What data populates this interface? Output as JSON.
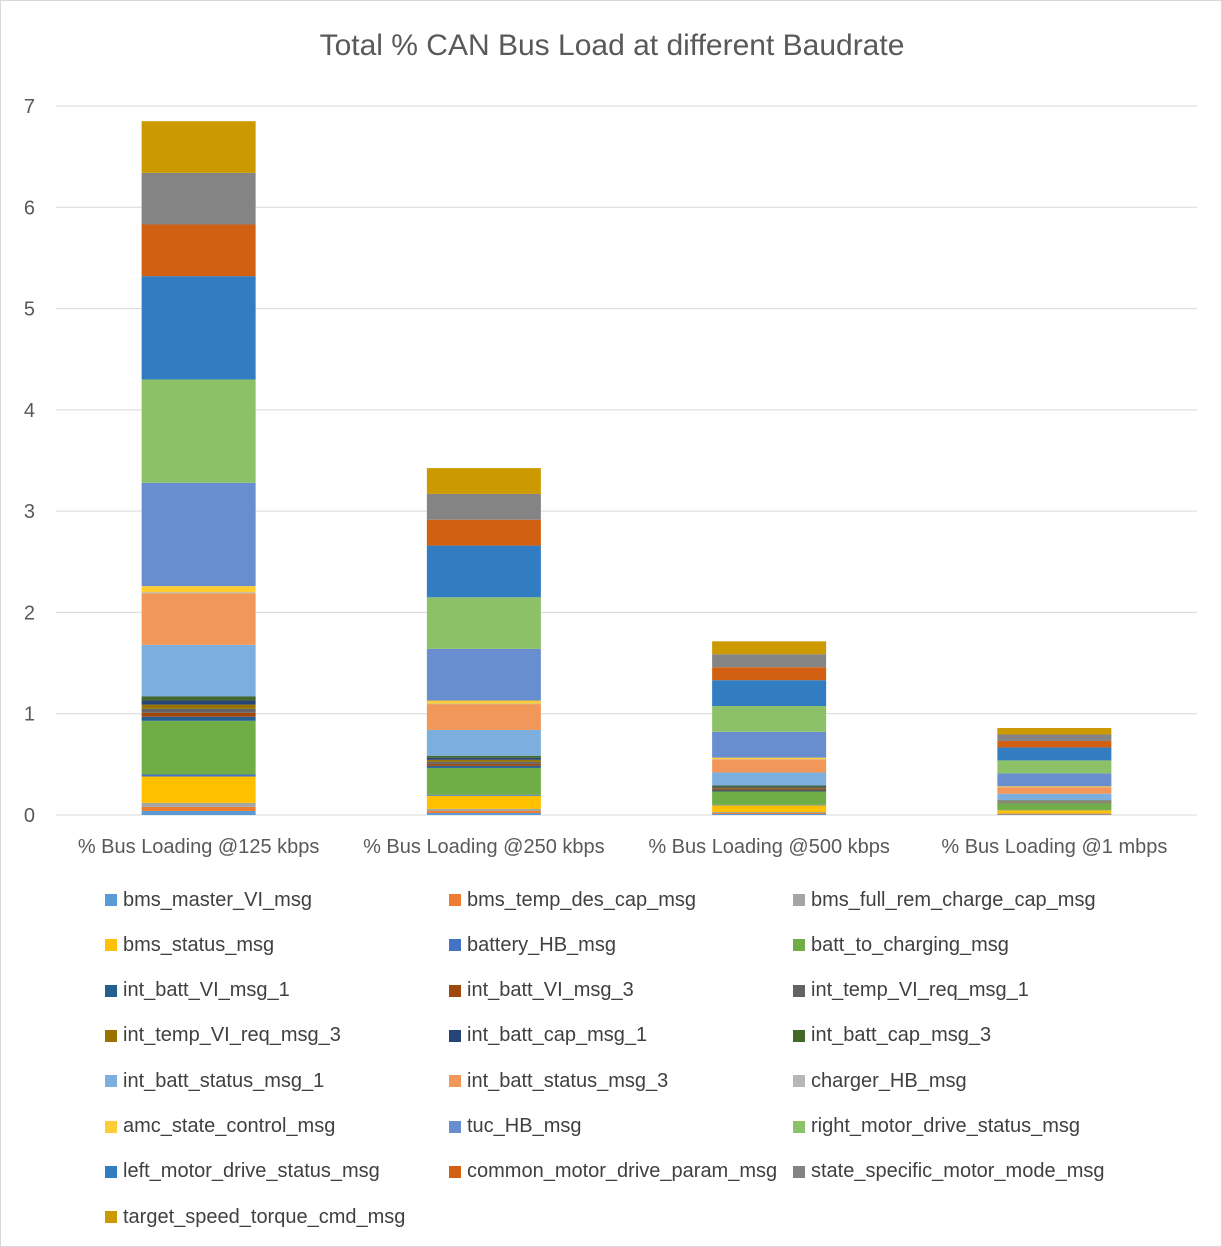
{
  "chart_data": {
    "type": "bar",
    "stacked": true,
    "title": "Total % CAN Bus Load at different Baudrate",
    "xlabel": "",
    "ylabel": "",
    "ylim": [
      0,
      7
    ],
    "yticks": [
      0,
      1,
      2,
      3,
      4,
      5,
      6,
      7
    ],
    "grid": true,
    "legend_position": "bottom",
    "categories": [
      "% Bus Loading @125 kbps",
      "% Bus Loading @250 kbps",
      "% Bus Loading @500 kbps",
      "% Bus Loading @1 mbps"
    ],
    "series": [
      {
        "name": "bms_master_VI_msg",
        "color": "#5B9BD5",
        "values": [
          0.04,
          0.02,
          0.01,
          0.005
        ]
      },
      {
        "name": "bms_temp_des_cap_msg",
        "color": "#ED7D31",
        "values": [
          0.04,
          0.02,
          0.01,
          0.005
        ]
      },
      {
        "name": "bms_full_rem_charge_cap_msg",
        "color": "#A5A5A5",
        "values": [
          0.04,
          0.02,
          0.01,
          0.005
        ]
      },
      {
        "name": "bms_status_msg",
        "color": "#FFC000",
        "values": [
          0.26,
          0.13,
          0.065,
          0.032
        ]
      },
      {
        "name": "battery_HB_msg",
        "color": "#4472C4",
        "values": [
          0.02,
          0.01,
          0.005,
          0.003
        ]
      },
      {
        "name": "batt_to_charging_msg",
        "color": "#70AD47",
        "values": [
          0.53,
          0.265,
          0.132,
          0.066
        ]
      },
      {
        "name": "int_batt_VI_msg_1",
        "color": "#255E91",
        "values": [
          0.04,
          0.02,
          0.01,
          0.005
        ]
      },
      {
        "name": "int_batt_VI_msg_3",
        "color": "#9E480E",
        "values": [
          0.04,
          0.02,
          0.01,
          0.005
        ]
      },
      {
        "name": "int_temp_VI_req_msg_1",
        "color": "#636363",
        "values": [
          0.04,
          0.02,
          0.01,
          0.005
        ]
      },
      {
        "name": "int_temp_VI_req_msg_3",
        "color": "#997300",
        "values": [
          0.04,
          0.02,
          0.01,
          0.005
        ]
      },
      {
        "name": "int_batt_cap_msg_1",
        "color": "#264478",
        "values": [
          0.04,
          0.02,
          0.01,
          0.005
        ]
      },
      {
        "name": "int_batt_cap_msg_3",
        "color": "#43682B",
        "values": [
          0.04,
          0.02,
          0.01,
          0.005
        ]
      },
      {
        "name": "int_batt_status_msg_1",
        "color": "#7CAFDD",
        "values": [
          0.51,
          0.255,
          0.128,
          0.064
        ]
      },
      {
        "name": "int_batt_status_msg_3",
        "color": "#F1975A",
        "values": [
          0.51,
          0.255,
          0.128,
          0.064
        ]
      },
      {
        "name": "charger_HB_msg",
        "color": "#B7B7B7",
        "values": [
          0.01,
          0.005,
          0.003,
          0.001
        ]
      },
      {
        "name": "amc_state_control_msg",
        "color": "#FFCD33",
        "values": [
          0.06,
          0.03,
          0.015,
          0.008
        ]
      },
      {
        "name": "tuc_HB_msg",
        "color": "#698ED0",
        "values": [
          1.02,
          0.51,
          0.255,
          0.128
        ]
      },
      {
        "name": "right_motor_drive_status_msg",
        "color": "#8CC168",
        "values": [
          1.02,
          0.51,
          0.255,
          0.128
        ]
      },
      {
        "name": "left_motor_drive_status_msg",
        "color": "#327DC2",
        "values": [
          1.02,
          0.51,
          0.255,
          0.128
        ]
      },
      {
        "name": "common_motor_drive_param_msg",
        "color": "#D26012",
        "values": [
          0.51,
          0.255,
          0.128,
          0.064
        ]
      },
      {
        "name": "state_specific_motor_mode_msg",
        "color": "#848484",
        "values": [
          0.51,
          0.255,
          0.128,
          0.064
        ]
      },
      {
        "name": "target_speed_torque_cmd_msg",
        "color": "#CC9A00",
        "values": [
          0.51,
          0.255,
          0.128,
          0.064
        ]
      }
    ]
  }
}
